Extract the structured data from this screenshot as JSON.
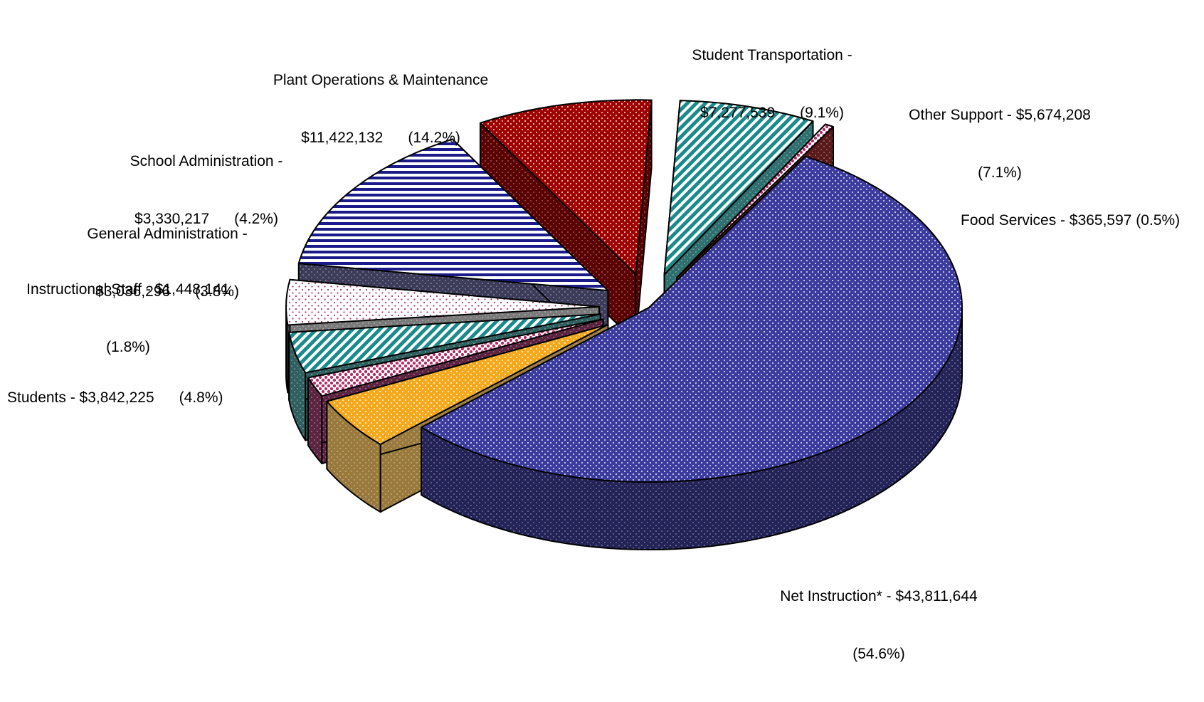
{
  "chart_data": {
    "type": "pie",
    "title": "",
    "slices": [
      {
        "name": "Net Instruction*",
        "value": 43811644,
        "percent": 54.6,
        "color": "#3b3b9e",
        "side_color": "#232358",
        "pattern": "dots"
      },
      {
        "name": "Students",
        "value": 3842225,
        "percent": 4.8,
        "color": "#f4a81c",
        "side_color": "#9a7a3c",
        "pattern": "dots"
      },
      {
        "name": "Instructional Staff",
        "value": 1448141,
        "percent": 1.8,
        "color": "#b0316a",
        "side_color": "#5c2440",
        "pattern": "checker"
      },
      {
        "name": "General Administration",
        "value": 3036296,
        "percent": 3.8,
        "color": "#1a8a8a",
        "side_color": "#2f5f5f",
        "pattern": "diagonal"
      },
      {
        "name": "School Administration",
        "value": 3330217,
        "percent": 4.2,
        "color": "#b0316a",
        "side_color": "#7a7a7a",
        "pattern": "sparse-dots"
      },
      {
        "name": "Plant Operations & Maintenance",
        "value": 11422132,
        "percent": 14.2,
        "color": "#1a1a8a",
        "side_color": "#3c3c5a",
        "pattern": "hstripes"
      },
      {
        "name": "Student Transportation",
        "value": 7277539,
        "percent": 9.1,
        "color": "#9e0000",
        "side_color": "#5a0000",
        "pattern": "dots"
      },
      {
        "name": "Other Support",
        "value": 5674208,
        "percent": 7.1,
        "color": "#1a8a8a",
        "side_color": "#2f6f6f",
        "pattern": "diagonal"
      },
      {
        "name": "Food Services",
        "value": 365597,
        "percent": 0.5,
        "color": "#b0316a",
        "side_color": "#5a1a1a",
        "pattern": "checker"
      }
    ]
  },
  "labels": {
    "net_instruction": {
      "line1": "Net Instruction* - $43,811,644",
      "line2": "(54.6%)"
    },
    "students": {
      "line1": "Students - $3,842,225      (4.8%)"
    },
    "instructional_staff": {
      "line1": "Instructional Staff - $1,448,141",
      "line2": "(1.8%)"
    },
    "general_administration": {
      "line1": "General Administration -",
      "line2": "$3,036,296      (3.8%)"
    },
    "school_administration": {
      "line1": "School Administration -",
      "line2": "$3,330,217      (4.2%)"
    },
    "plant_operations": {
      "line1": "Plant Operations & Maintenance",
      "line2": "$11,422,132      (14.2%)"
    },
    "student_transportation": {
      "line1": "Student Transportation -",
      "line2": "$7,277,539      (9.1%)"
    },
    "other_support": {
      "line1": "Other Support - $5,674,208",
      "line2": "(7.1%)"
    },
    "food_services": {
      "line1": "Food Services - $365,597 (0.5%)"
    }
  }
}
